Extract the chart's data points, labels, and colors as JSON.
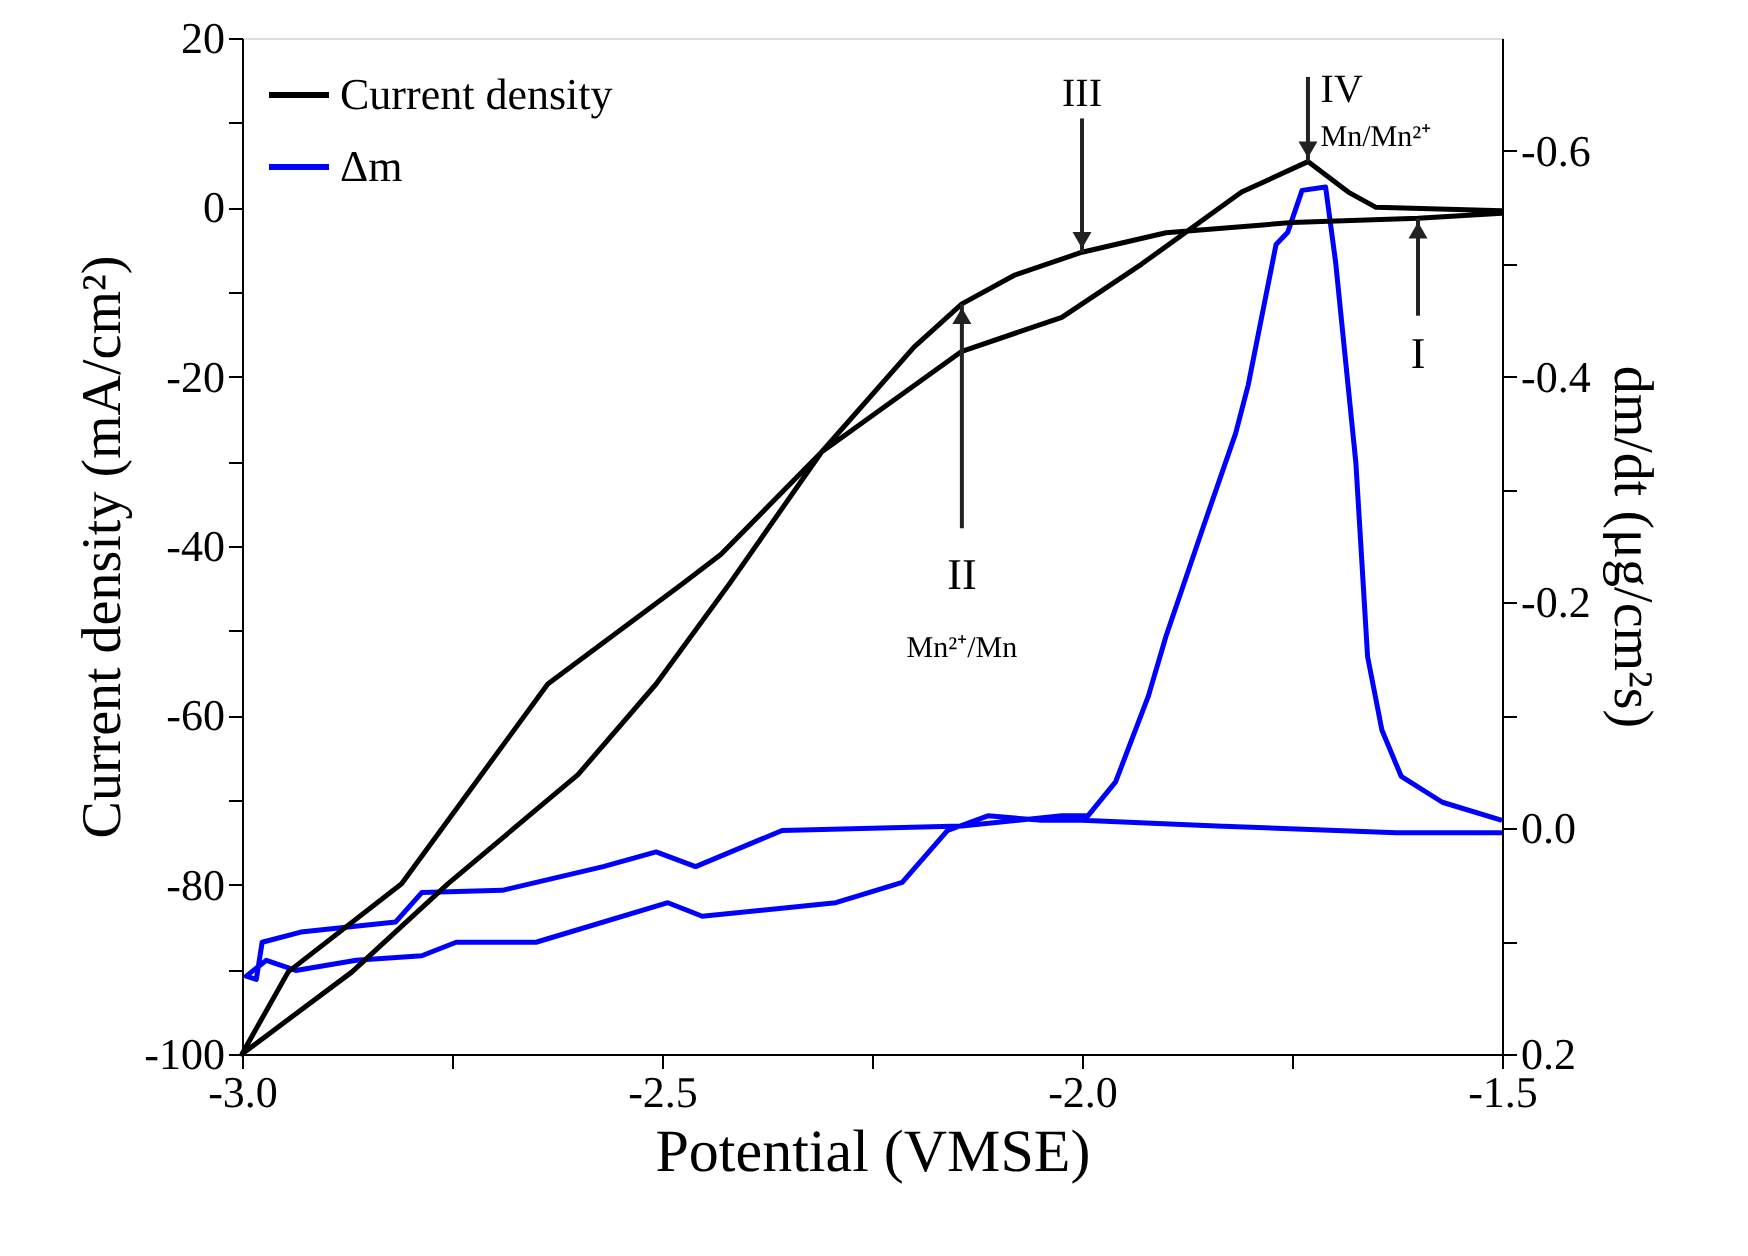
{
  "chart_data": {
    "type": "line",
    "xlabel": "Potential (VMSE)",
    "ylabel": "Current density (mA/cm²)",
    "y2label": "dm/dt (μg/cm²s)",
    "xlim": [
      -3.0,
      -1.5
    ],
    "xticks": [
      {
        "value": -3.0,
        "label": "-3.0"
      },
      {
        "value": -2.75,
        "label": null
      },
      {
        "value": -2.5,
        "label": "-2.5"
      },
      {
        "value": -2.25,
        "label": null
      },
      {
        "value": -2.0,
        "label": "-2.0"
      },
      {
        "value": -1.75,
        "label": null
      },
      {
        "value": -1.5,
        "label": "-1.5"
      }
    ],
    "ylim": [
      -100,
      20
    ],
    "yticks": [
      -100,
      {
        "value": -90,
        "label": null
      },
      -80,
      {
        "value": -70,
        "label": null
      },
      -60,
      {
        "value": -50,
        "label": null
      },
      -40,
      {
        "value": -30,
        "label": null
      },
      -20,
      {
        "value": -10,
        "label": null
      },
      0,
      {
        "value": 10,
        "label": null
      },
      20
    ],
    "y2lim": [
      0.2,
      -0.7
    ],
    "y2ticks": [
      {
        "value": 0.2,
        "label": "0.2"
      },
      {
        "value": 0.1,
        "label": null
      },
      {
        "value": 0.0,
        "label": "0.0"
      },
      {
        "value": -0.1,
        "label": null
      },
      {
        "value": -0.2,
        "label": "-0.2"
      },
      {
        "value": -0.3,
        "label": null
      },
      {
        "value": -0.4,
        "label": "-0.4"
      },
      {
        "value": -0.5,
        "label": null
      },
      {
        "value": -0.6,
        "label": "-0.6"
      }
    ],
    "legend": "top left",
    "grid": false,
    "marker": "none",
    "line_style": "solid",
    "series": [
      {
        "name": "Current density",
        "color": "#000000",
        "x": [
          -1.5,
          -1.6,
          -1.75,
          -1.9,
          -2.0,
          -2.08,
          -2.143,
          -2.2,
          -2.31,
          -2.42,
          -2.507,
          -2.6,
          -2.755,
          -2.869,
          -3.0,
          -2.945,
          -2.81,
          -2.636,
          -2.476,
          -2.43,
          -2.31,
          -2.143,
          -2.024,
          -1.929,
          -1.81,
          -1.731,
          -1.683,
          -1.65,
          -1.5
        ],
        "values": [
          -0.7,
          -1.3,
          -1.8,
          -3.0,
          -5.3,
          -8.0,
          -11.4,
          -16.5,
          -28.9,
          -44.5,
          -56.3,
          -67.0,
          -79.9,
          -90.3,
          -100.0,
          -90.3,
          -79.9,
          -56.3,
          -44.5,
          -41.0,
          -28.9,
          -17.0,
          -13.0,
          -6.7,
          1.8,
          5.4,
          1.8,
          0.0,
          -0.4
        ]
      },
      {
        "name": "Δm",
        "color": "#0000ff",
        "axis": "y2",
        "x": [
          -1.5,
          -1.626,
          -1.84,
          -2.0,
          -2.048,
          -2.112,
          -2.16,
          -2.214,
          -2.293,
          -2.452,
          -2.493,
          -2.65,
          -2.745,
          -2.786,
          -2.864,
          -2.936,
          -2.971,
          -2.995,
          -2.983,
          -2.976,
          -2.93,
          -2.817,
          -2.786,
          -2.69,
          -2.57,
          -2.507,
          -2.46,
          -2.357,
          -2.143,
          -2.024,
          -1.993,
          -1.96,
          -1.921,
          -1.9,
          -1.857,
          -1.817,
          -1.802,
          -1.769,
          -1.755,
          -1.738,
          -1.71,
          -1.698,
          -1.674,
          -1.66,
          -1.643,
          -1.62,
          -1.571,
          -1.5
        ],
        "values": [
          0.004,
          0.004,
          -0.002,
          -0.007,
          -0.007,
          -0.011,
          0.002,
          0.048,
          0.066,
          0.078,
          0.066,
          0.101,
          0.101,
          0.113,
          0.117,
          0.126,
          0.117,
          0.131,
          0.134,
          0.101,
          0.092,
          0.083,
          0.057,
          0.055,
          0.034,
          0.021,
          0.034,
          0.002,
          -0.002,
          -0.011,
          -0.011,
          -0.041,
          -0.117,
          -0.17,
          -0.264,
          -0.35,
          -0.393,
          -0.517,
          -0.528,
          -0.565,
          -0.568,
          -0.501,
          -0.324,
          -0.152,
          -0.087,
          -0.046,
          -0.023,
          -0.007
        ]
      }
    ],
    "annotations": [
      {
        "text": "I",
        "x": -1.6,
        "y": -1.3
      },
      {
        "text": "II",
        "x": -2.143,
        "y": -11.4
      },
      "Mn²⁺/Mn",
      {
        "text": "III",
        "x": -2.0,
        "y": -5.3
      },
      {
        "text": "IV",
        "x": -1.731,
        "y": 5.4
      },
      {
        "text": "Mn/Mn²⁺",
        "x": -1.731,
        "y": 5.4
      }
    ]
  }
}
